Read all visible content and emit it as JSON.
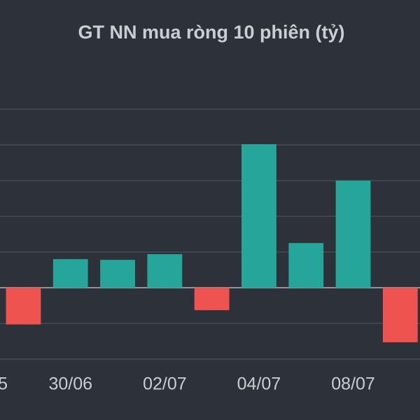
{
  "chart_data": {
    "type": "bar",
    "title": "GT NN mua ròng 10 phiên (tỷ)",
    "categories": [
      "5",
      null,
      "30/06",
      null,
      "02/07",
      null,
      "04/07",
      null,
      "08/07",
      null
    ],
    "values": [
      null,
      -103,
      80,
      78,
      94,
      -63,
      402,
      125,
      300,
      -153
    ],
    "positive_color": "#26a69a",
    "negative_color": "#ef5350",
    "ylim": [
      -253,
      551
    ],
    "yticks": [
      -200,
      -100,
      0,
      100,
      200,
      300,
      400,
      500
    ],
    "grid": true
  }
}
